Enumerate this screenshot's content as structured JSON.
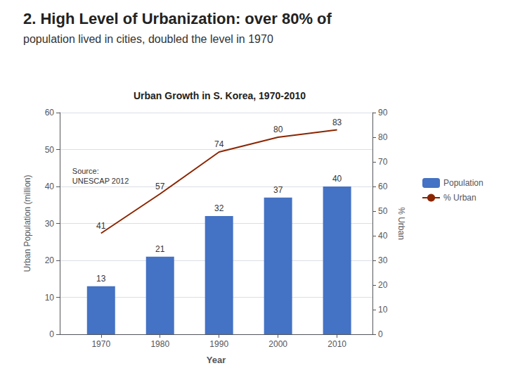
{
  "chart_data": {
    "type": "bar",
    "title": "2. High Level of Urbanization: over 80% of",
    "subtitle": "population lived in cities, doubled the level in 1970",
    "annotations": [
      "Urban Growth in S. Korea, 1970-2010",
      "Source:\nUNESCAP 2012"
    ],
    "x": [
      1970,
      1980,
      1990,
      2000,
      2010
    ],
    "xlim": [
      1963,
      2016
    ],
    "xticks": [
      1970,
      1980,
      1990,
      2000,
      2010
    ],
    "xlabel": "Year",
    "ylabel": "Urban Population (million)",
    "y2label": "% Urban",
    "ylim": [
      0,
      60
    ],
    "yticks": [
      0,
      10,
      20,
      30,
      40,
      50,
      60
    ],
    "y2lim": [
      0,
      90
    ],
    "y2ticks": [
      0,
      10,
      20,
      30,
      40,
      50,
      60,
      70,
      80,
      90
    ],
    "series": [
      {
        "name": "Population",
        "type": "bar",
        "color": "#4472C4",
        "values": [
          13,
          21,
          32,
          37,
          40
        ]
      },
      {
        "name": "% Urban",
        "type": "line",
        "color": "#8B2500",
        "axis": "y2",
        "values": [
          41,
          57,
          74,
          80,
          83
        ]
      }
    ],
    "data_labels": true,
    "grid": true,
    "legend": "right"
  }
}
